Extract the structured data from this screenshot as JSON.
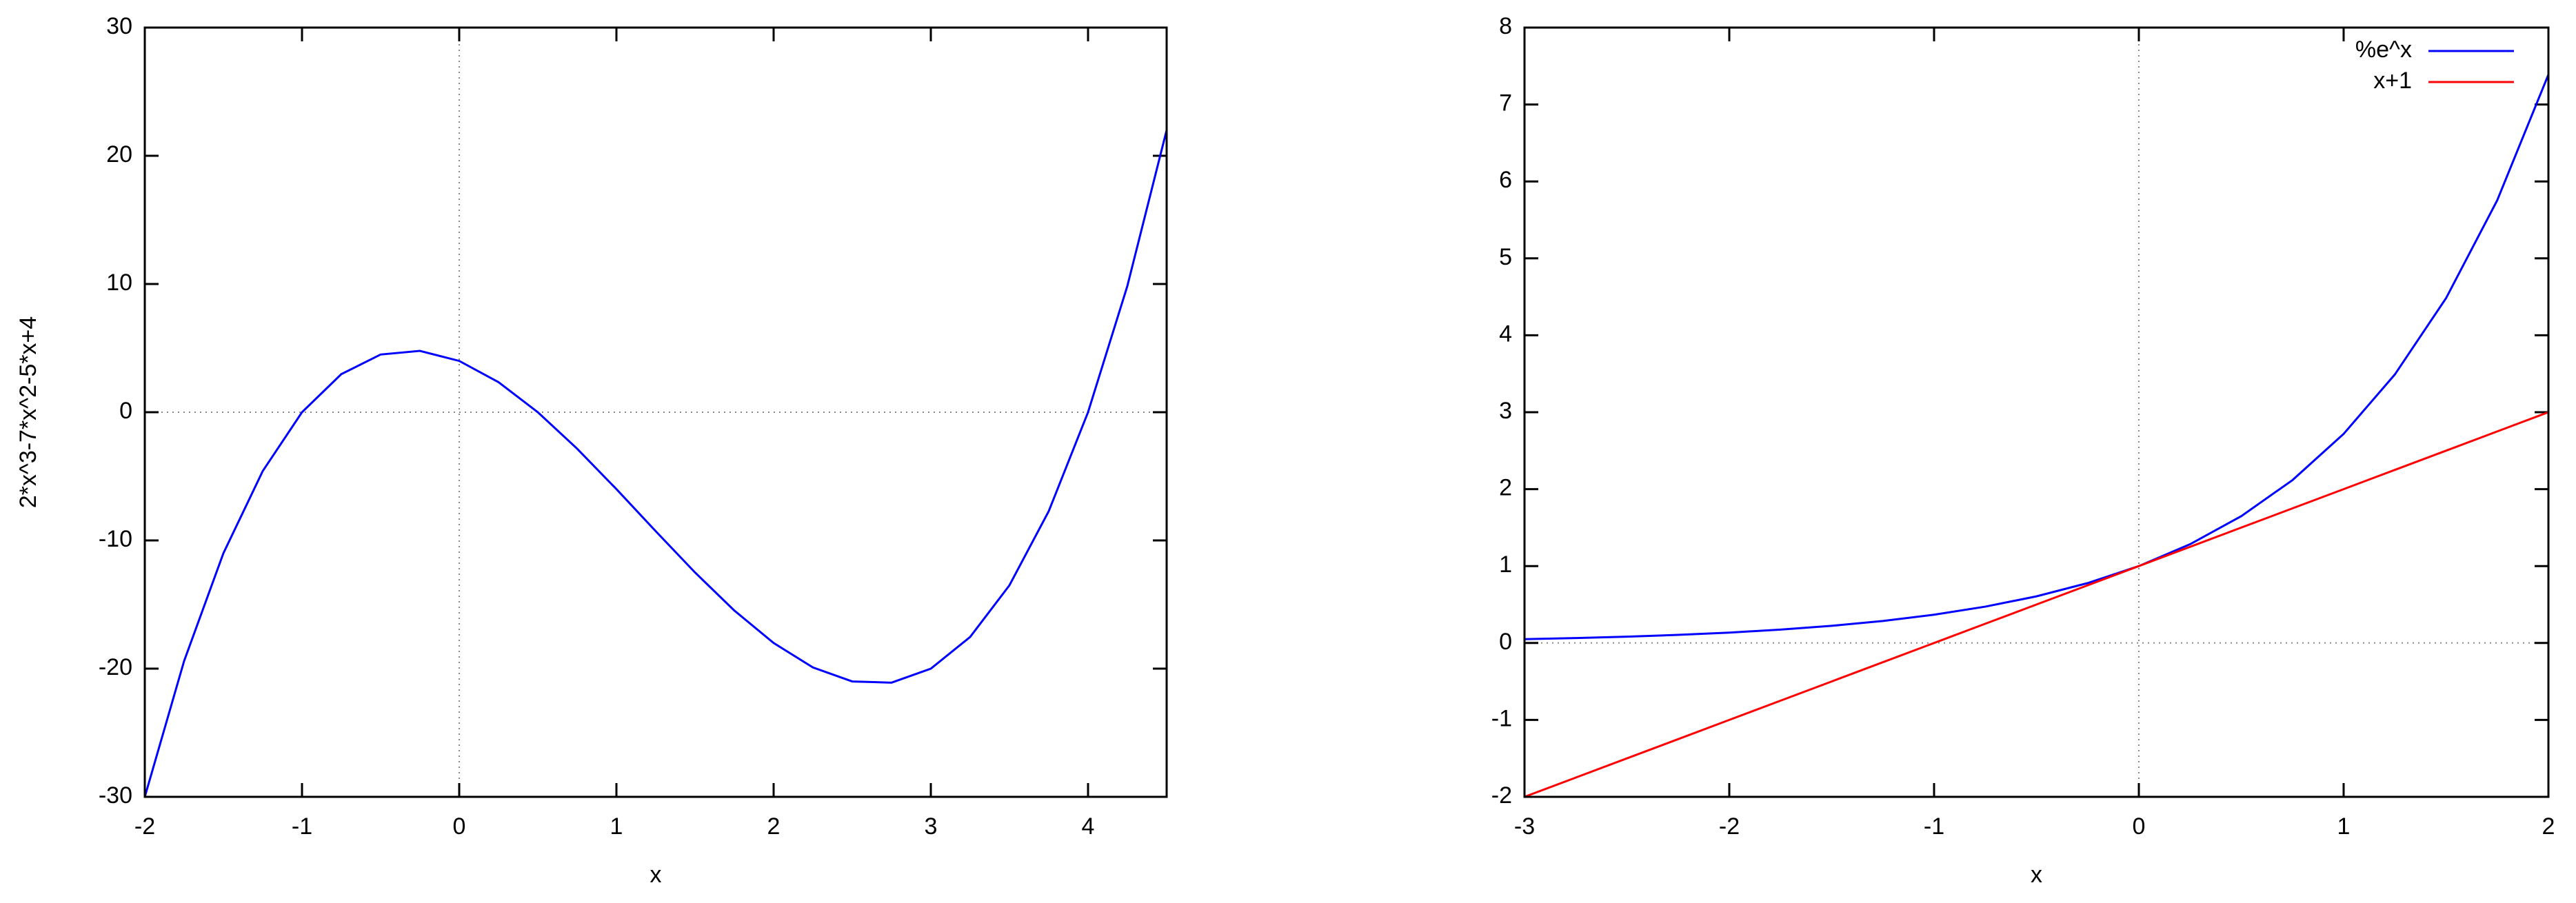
{
  "chart_data": [
    {
      "type": "line",
      "xlabel": "x",
      "ylabel": "2*x^3-7*x^2-5*x+4",
      "x": [
        -2,
        -1.75,
        -1.5,
        -1.25,
        -1,
        -0.75,
        -0.5,
        -0.25,
        0,
        0.25,
        0.5,
        0.75,
        1,
        1.25,
        1.5,
        1.75,
        2,
        2.25,
        2.5,
        2.75,
        3,
        3.25,
        3.5,
        3.75,
        4,
        4.25,
        4.5
      ],
      "series": [
        {
          "color": "#0000ff",
          "values": [
            -30,
            -19.40625,
            -11,
            -4.59375,
            0,
            2.96875,
            4.5,
            4.78125,
            4,
            2.34375,
            0,
            -2.84375,
            -6,
            -9.28125,
            -12.5,
            -15.46875,
            -18,
            -19.90625,
            -21,
            -21.09375,
            -20,
            -17.53125,
            -13.5,
            -7.71875,
            0,
            9.84375,
            22
          ]
        }
      ],
      "xlim": [
        -2,
        4.5
      ],
      "ylim": [
        -30,
        30
      ],
      "xticks": [
        -2,
        -1,
        0,
        1,
        2,
        3,
        4
      ],
      "yticks": [
        -30,
        -20,
        -10,
        0,
        10,
        20,
        30
      ],
      "zero_axes": true
    },
    {
      "type": "line",
      "xlabel": "x",
      "x": [
        -3,
        -2.75,
        -2.5,
        -2.25,
        -2,
        -1.75,
        -1.5,
        -1.25,
        -1,
        -0.75,
        -0.5,
        -0.25,
        0,
        0.25,
        0.5,
        0.75,
        1,
        1.25,
        1.5,
        1.75,
        2
      ],
      "series": [
        {
          "name": "%e^x",
          "color": "#0000ff",
          "values": [
            0.0498,
            0.0639,
            0.0821,
            0.1054,
            0.1353,
            0.1738,
            0.2231,
            0.2865,
            0.3679,
            0.4724,
            0.6065,
            0.7788,
            1,
            1.284,
            1.6487,
            2.117,
            2.7183,
            3.4903,
            4.4817,
            5.7546,
            7.3891
          ]
        },
        {
          "name": "x+1",
          "color": "#ff0000",
          "values": [
            -2,
            -1.75,
            -1.5,
            -1.25,
            -1,
            -0.75,
            -0.5,
            -0.25,
            0,
            0.25,
            0.5,
            0.75,
            1,
            1.25,
            1.5,
            1.75,
            2,
            2.25,
            2.5,
            2.75,
            3
          ]
        }
      ],
      "xlim": [
        -3,
        2
      ],
      "ylim": [
        -2,
        8
      ],
      "xticks": [
        -3,
        -2,
        -1,
        0,
        1,
        2
      ],
      "yticks": [
        -2,
        -1,
        0,
        1,
        2,
        3,
        4,
        5,
        6,
        7,
        8
      ],
      "zero_axes": true,
      "legend": "top-right"
    }
  ]
}
